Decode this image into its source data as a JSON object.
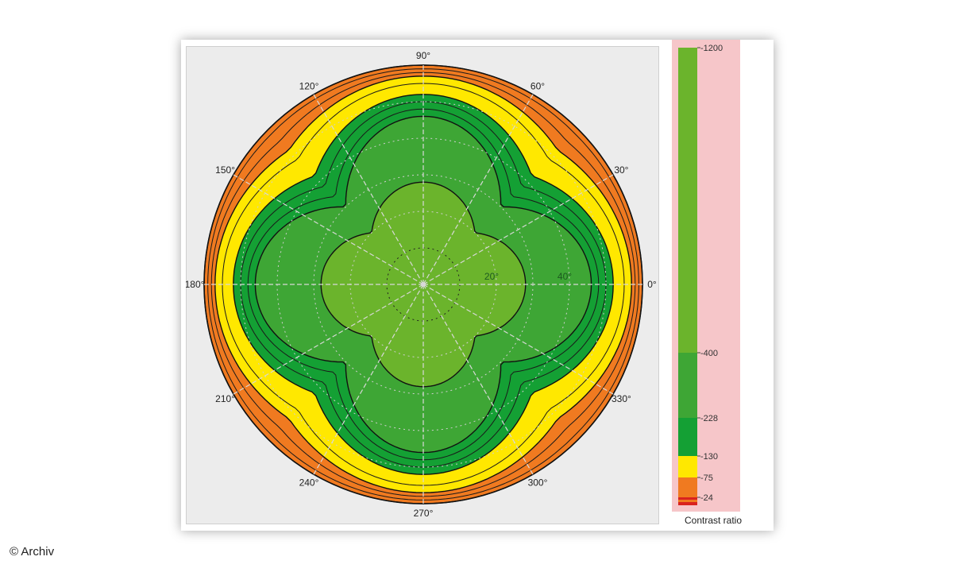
{
  "chart_data": {
    "type": "polar-contour",
    "title": "",
    "angle_ticks": [
      "90°",
      "60°",
      "30°",
      "0°",
      "330°",
      "300°",
      "270°",
      "240°",
      "210°",
      "180°",
      "150°",
      "120°"
    ],
    "angle_tick_values": [
      90,
      60,
      30,
      0,
      330,
      300,
      270,
      240,
      210,
      180,
      150,
      120
    ],
    "radial_ticks": [
      "20°",
      "40°"
    ],
    "radial_tick_values": [
      20,
      40
    ],
    "radial_max": 60,
    "levels": [
      24,
      75,
      130,
      228,
      400,
      1200
    ],
    "level_labels": [
      "-24",
      "-75",
      "-130",
      "-228",
      "-400",
      "-1200"
    ],
    "bands": [
      {
        "min": 0,
        "max": 24,
        "color": "#d9221e"
      },
      {
        "min": 24,
        "max": 75,
        "color": "#f07a20"
      },
      {
        "min": 75,
        "max": 130,
        "color": "#ffe800"
      },
      {
        "min": 130,
        "max": 228,
        "color": "#14a034"
      },
      {
        "min": 228,
        "max": 400,
        "color": "#3ea635"
      },
      {
        "min": 400,
        "max": 1200,
        "color": "#6bb42c"
      }
    ],
    "contour_radii_deg": {
      "description_key": "approximate viewing-angle radius of each contour at 0°/90°/180°/270° (axis) and at 45° diagonals",
      "24": {
        "axis": 60,
        "diagonal": 60
      },
      "75": {
        "axis": 57,
        "diagonal": 52
      },
      "130": {
        "axis": 52,
        "diagonal": 42
      },
      "228": {
        "axis": 46,
        "diagonal": 30
      },
      "400": {
        "axis": 28,
        "diagonal": 20
      }
    },
    "legend_title": "Contrast ratio"
  },
  "credit": "© Archiv"
}
